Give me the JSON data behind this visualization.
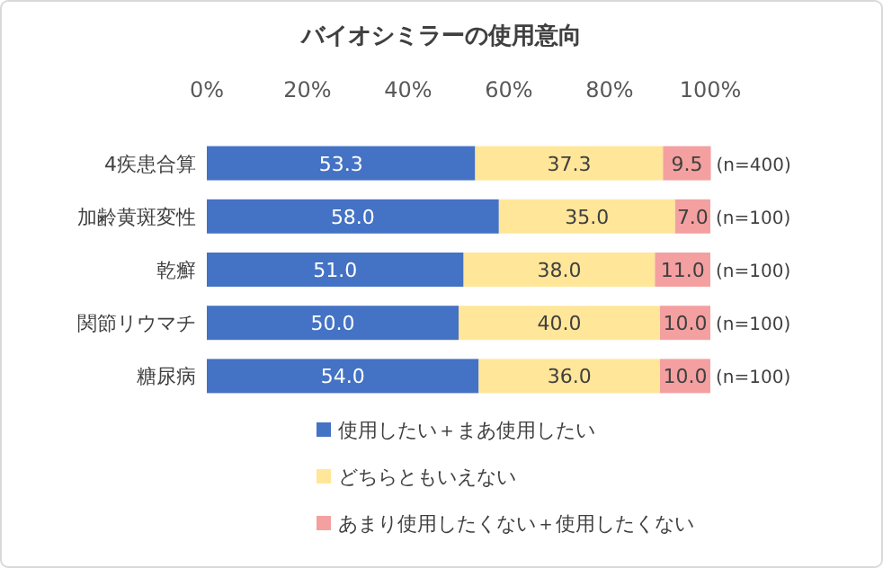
{
  "chart_data": {
    "type": "bar",
    "orientation": "horizontal",
    "stacked": true,
    "title": "バイオシミラーの使用意向",
    "categories": [
      "4疾患合算",
      "加齢黄斑変性",
      "乾癬",
      "関節リウマチ",
      "糖尿病"
    ],
    "series": [
      {
        "name": "使用したい＋まあ使用したい",
        "color": "#4472c4",
        "values": [
          53.3,
          58.0,
          51.0,
          50.0,
          54.0
        ]
      },
      {
        "name": "どちらともいえない",
        "color": "#ffe699",
        "values": [
          37.3,
          35.0,
          38.0,
          40.0,
          36.0
        ]
      },
      {
        "name": "あまり使用したくない＋使用したくない",
        "color": "#f4a0a0",
        "values": [
          9.5,
          7.0,
          11.0,
          10.0,
          10.0
        ]
      }
    ],
    "value_labels": [
      [
        "53.3",
        "58.0",
        "51.0",
        "50.0",
        "54.0"
      ],
      [
        "37.3",
        "35.0",
        "38.0",
        "40.0",
        "36.0"
      ],
      [
        "9.5",
        "7.0",
        "11.0",
        "10.0",
        "10.0"
      ]
    ],
    "xlim": [
      0,
      100
    ],
    "xticks": [
      {
        "value": 0,
        "label": "0%"
      },
      {
        "value": 20,
        "label": "20%"
      },
      {
        "value": 40,
        "label": "40%"
      },
      {
        "value": 60,
        "label": "60%"
      },
      {
        "value": 80,
        "label": "80%"
      },
      {
        "value": 100,
        "label": "100%"
      }
    ],
    "annotations": [
      "(n=400)",
      "(n=100)",
      "(n=100)",
      "(n=100)",
      "(n=100)"
    ],
    "legend": "bottom"
  }
}
